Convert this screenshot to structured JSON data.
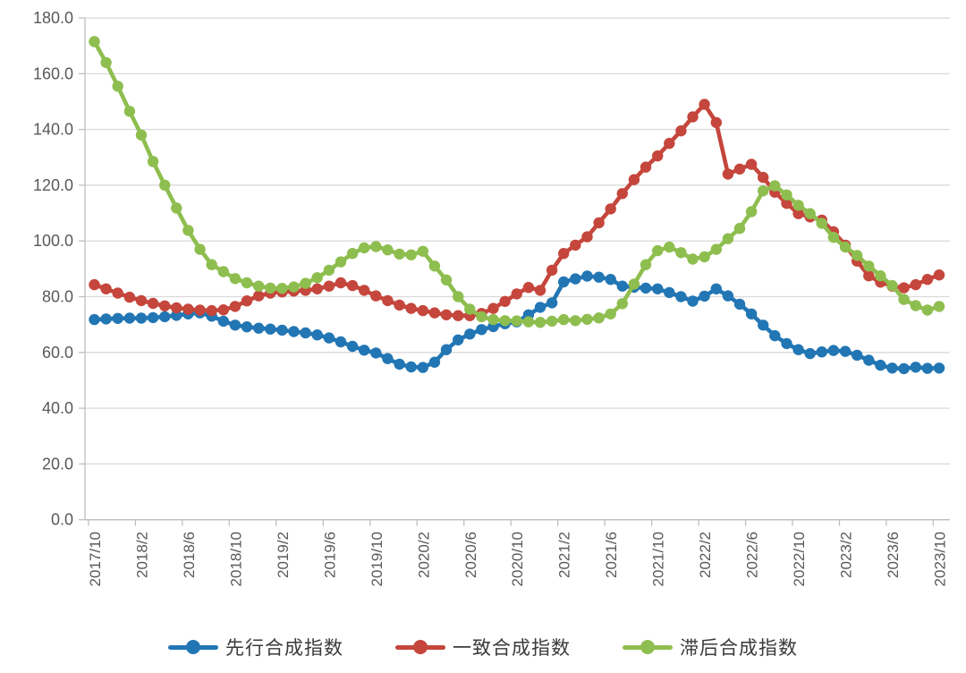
{
  "chart_data": {
    "type": "line",
    "title": "",
    "xlabel": "",
    "ylabel": "",
    "ylim": [
      0,
      180
    ],
    "y_step": 20,
    "grid": "horizontal",
    "legend_position": "bottom",
    "y_tick_labels": [
      "0.0",
      "20.0",
      "40.0",
      "60.0",
      "80.0",
      "100.0",
      "120.0",
      "140.0",
      "160.0",
      "180.0"
    ],
    "x_tick_labels": [
      "2017/10",
      "2018/2",
      "2018/6",
      "2018/10",
      "2019/2",
      "2019/6",
      "2019/10",
      "2020/2",
      "2020/6",
      "2020/10",
      "2021/2",
      "2021/6",
      "2021/10",
      "2022/2",
      "2022/6",
      "2022/10",
      "2023/2",
      "2023/6",
      "2023/10"
    ],
    "x_months_per_tick": 4,
    "x_total_points": 73,
    "series": [
      {
        "name": "先行合成指数",
        "color": "#2276B4",
        "values": [
          71.8,
          72,
          72.2,
          72.3,
          72.3,
          72.5,
          72.8,
          73.3,
          73.8,
          74.2,
          73,
          71.2,
          69.8,
          69.2,
          68.7,
          68.4,
          68,
          67.5,
          67,
          66.3,
          65.2,
          63.8,
          62.2,
          60.8,
          59.8,
          57.8,
          55.8,
          54.8,
          54.6,
          56.5,
          61,
          64.5,
          66.6,
          68.2,
          69.3,
          70.3,
          71,
          73.5,
          76.2,
          77.8,
          85.3,
          86.4,
          87.4,
          87,
          86.2,
          83.8,
          83.4,
          83.1,
          82.8,
          81.5,
          80,
          78.4,
          80.2,
          82.8,
          80.3,
          77.3,
          73.8,
          69.8,
          66,
          63.2,
          61,
          59.6,
          60.2,
          60.7,
          60.4,
          59,
          57.2,
          55.4,
          54.4,
          54.2,
          54.7,
          54.3,
          54.4
        ]
      },
      {
        "name": "一致合成指数",
        "color": "#C5463C",
        "values": [
          84.3,
          82.8,
          81.3,
          79.8,
          78.6,
          77.6,
          76.7,
          76,
          75.5,
          75.2,
          75,
          75.3,
          76.5,
          78.5,
          80.3,
          81.3,
          81.7,
          82,
          82.3,
          82.8,
          83.8,
          85,
          84,
          82.3,
          80.3,
          78.6,
          77,
          75.8,
          75,
          74.2,
          73.5,
          73.2,
          73.2,
          74,
          75.8,
          78.3,
          81,
          83.3,
          82.3,
          89.5,
          95.5,
          98.5,
          101.5,
          106.5,
          111.5,
          117,
          122,
          126.5,
          130.5,
          135,
          139.5,
          144.5,
          149,
          142.5,
          124,
          125.8,
          127.5,
          122.8,
          117.5,
          113.5,
          109.8,
          108.6,
          107.5,
          103.3,
          98.5,
          92.8,
          87.5,
          85.2,
          83.8,
          83.2,
          84.3,
          86.2,
          87.8
        ]
      },
      {
        "name": "滞后合成指数",
        "color": "#8EBE4F",
        "values": [
          171.5,
          164,
          155.5,
          146.5,
          138,
          128.5,
          120,
          111.8,
          103.8,
          97,
          91.5,
          89,
          86.5,
          85,
          83.8,
          83.1,
          83,
          83.5,
          84.8,
          86.8,
          89.5,
          92.5,
          95.5,
          97.5,
          98,
          96.8,
          95.3,
          95,
          96.3,
          91,
          86,
          80,
          75.5,
          72.8,
          71.8,
          71.4,
          71.3,
          71,
          70.8,
          71.2,
          71.8,
          71.4,
          71.9,
          72.4,
          73.8,
          77.5,
          84.5,
          91.5,
          96.5,
          97.8,
          95.8,
          93.5,
          94.3,
          97,
          100.8,
          104.5,
          110.5,
          118,
          119.8,
          116.5,
          112.8,
          109.8,
          106.3,
          101.3,
          97.8,
          94.8,
          91,
          87.5,
          84,
          79,
          76.8,
          75.2,
          76.5
        ]
      }
    ]
  },
  "colors": {
    "gridline": "#d9d9d9",
    "axis": "#bfbfbf",
    "tick_text": "#595959",
    "legend_text": "#3a3a3a"
  }
}
